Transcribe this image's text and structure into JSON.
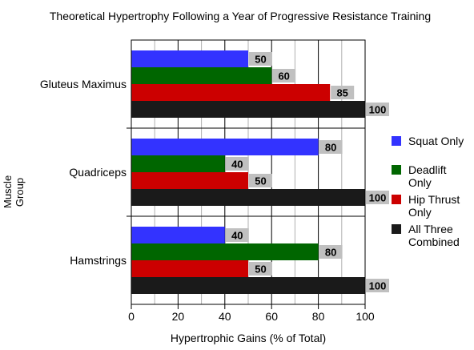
{
  "chart_data": {
    "type": "bar",
    "orientation": "horizontal",
    "title": "Theoretical Hypertrophy Following a Year of Progressive Resistance Training",
    "xlabel": "Hypertrophic Gains (% of Total)",
    "ylabel": "Muscle Group",
    "xlim": [
      0,
      100
    ],
    "xticks": [
      "0",
      "20",
      "40",
      "60",
      "80",
      "100"
    ],
    "grid": "vertical",
    "legend_position": "right",
    "categories": [
      "Gluteus Maximus",
      "Quadriceps",
      "Hamstrings"
    ],
    "series": [
      {
        "name": "Squat Only",
        "color": "#3333ff",
        "values": [
          50,
          80,
          40
        ]
      },
      {
        "name": "Deadlift Only",
        "color": "#006600",
        "values": [
          60,
          40,
          80
        ]
      },
      {
        "name": "Hip Thrust Only",
        "color": "#cc0000",
        "values": [
          85,
          50,
          50
        ]
      },
      {
        "name": "All Three Combined",
        "color": "#1a1a1a",
        "values": [
          100,
          100,
          100
        ]
      }
    ],
    "data_labels": true,
    "label_background": "#c0c0c0"
  }
}
